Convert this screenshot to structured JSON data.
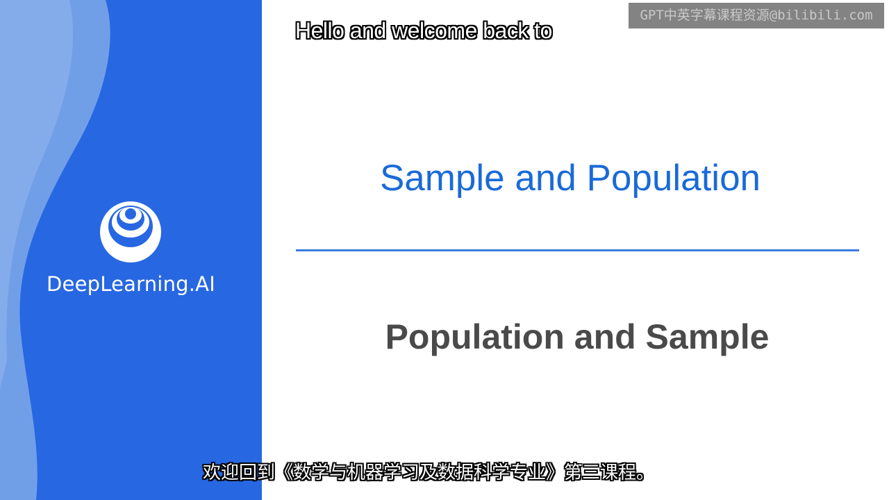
{
  "brand": {
    "name": "DeepLearning.AI",
    "panel_color": "#2767e2",
    "wave_color": "#7fa9e8"
  },
  "slide": {
    "title": "Sample and Population",
    "subtitle": "Population and Sample",
    "title_color": "#1a6ad8",
    "subtitle_color": "#4a4a4a",
    "divider_color": "#3a7be0"
  },
  "captions": {
    "english": "Hello and welcome back to",
    "chinese": "欢迎回到《数学与机器学习及数据科学专业》第三课程。"
  },
  "watermark": {
    "text": "GPT中英字幕课程资源@bilibili.com"
  }
}
